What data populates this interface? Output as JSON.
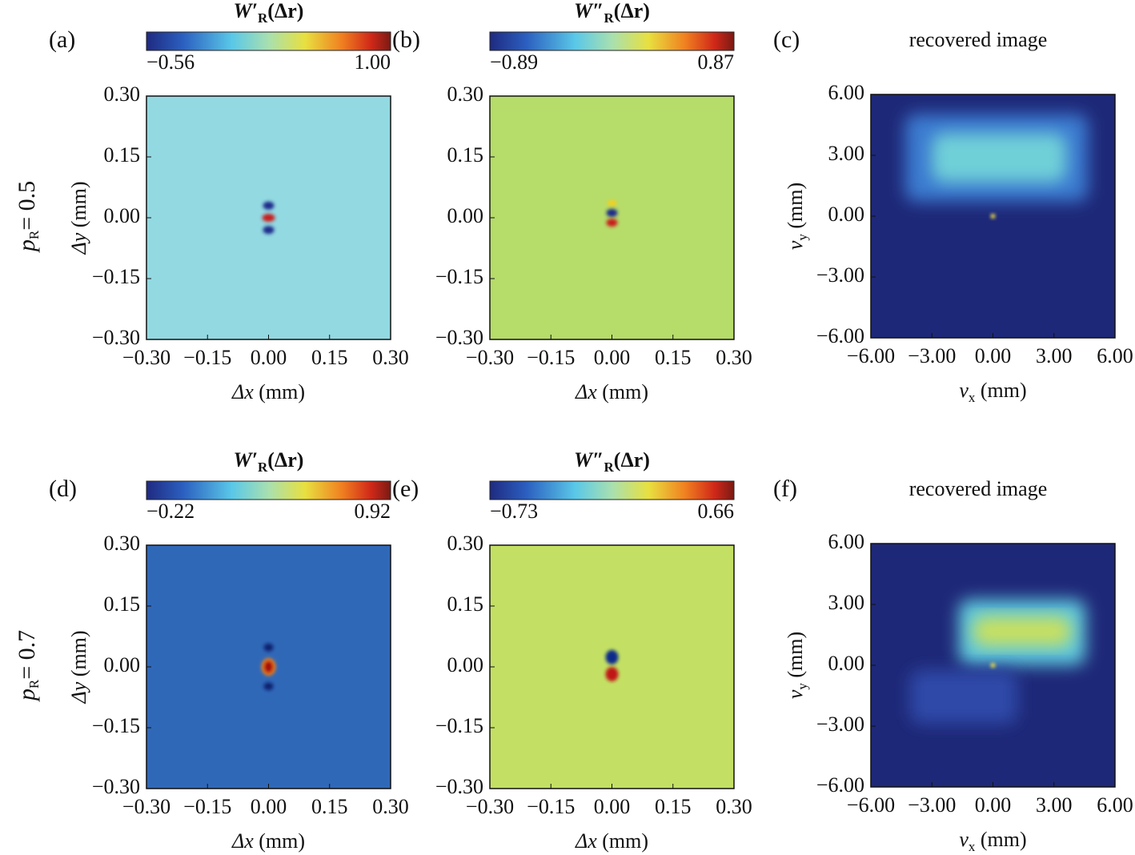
{
  "chart_data": [
    {
      "type": "heatmap",
      "panel_label": "(a)",
      "row_label": {
        "symbol": "p",
        "subscript": "R",
        "text": "= 0.5"
      },
      "colorbar_label": {
        "symbol": "W′",
        "subscript": "R",
        "argument": "(Δr)"
      },
      "colormap": "jet",
      "clim": [
        -0.56,
        1
      ],
      "cticks": [
        {
          "value": -0.56,
          "label": "−0.56"
        },
        {
          "value": 1,
          "label": "1.00"
        }
      ],
      "xlabel": {
        "symbol": "Δx",
        "unit": "(mm)"
      },
      "ylabel": {
        "symbol": "Δy",
        "unit": "(mm)"
      },
      "xlim": [
        -0.3,
        0.3
      ],
      "xticks": [
        {
          "value": -0.3,
          "label": "−0.30"
        },
        {
          "value": -0.15,
          "label": "−0.15"
        },
        {
          "value": 0,
          "label": "0.00"
        },
        {
          "value": 0.15,
          "label": "0.15"
        },
        {
          "value": 0.3,
          "label": "0.30"
        }
      ],
      "ylim": [
        -0.3,
        0.3
      ],
      "yticks": [
        {
          "value": -0.3,
          "label": "−0.30"
        },
        {
          "value": -0.15,
          "label": "−0.15"
        },
        {
          "value": 0,
          "label": "0.00"
        },
        {
          "value": 0.15,
          "label": "0.15"
        },
        {
          "value": 0.3,
          "label": "0.30"
        }
      ]
    },
    {
      "type": "heatmap",
      "panel_label": "(b)",
      "colorbar_label": {
        "symbol": "W″",
        "subscript": "R",
        "argument": "(Δr)"
      },
      "colormap": "jet",
      "clim": [
        -0.89,
        0.87
      ],
      "cticks": [
        {
          "value": -0.89,
          "label": "−0.89"
        },
        {
          "value": 0.87,
          "label": "0.87"
        }
      ],
      "xlabel": {
        "symbol": "Δx",
        "unit": "(mm)"
      },
      "xlim": [
        -0.3,
        0.3
      ],
      "xticks": [
        {
          "value": -0.3,
          "label": "−0.30"
        },
        {
          "value": -0.15,
          "label": "−0.15"
        },
        {
          "value": 0,
          "label": "0.00"
        },
        {
          "value": 0.15,
          "label": "0.15"
        },
        {
          "value": 0.3,
          "label": "0.30"
        }
      ],
      "ylim": [
        -0.3,
        0.3
      ],
      "yticks": [
        {
          "value": -0.3,
          "label": "−0.30"
        },
        {
          "value": -0.15,
          "label": "−0.15"
        },
        {
          "value": 0,
          "label": "0.00"
        },
        {
          "value": 0.15,
          "label": "0.15"
        },
        {
          "value": 0.3,
          "label": "0.30"
        }
      ]
    },
    {
      "type": "heatmap",
      "panel_label": "(c)",
      "title": "recovered image",
      "xlabel": {
        "symbol": "v",
        "subscript": "x",
        "unit": "(mm)"
      },
      "ylabel": {
        "symbol": "v",
        "subscript": "y",
        "unit": "(mm)"
      },
      "xlim": [
        -6,
        6
      ],
      "xticks": [
        {
          "value": -6,
          "label": "−6.00"
        },
        {
          "value": -3,
          "label": "−3.00"
        },
        {
          "value": 0,
          "label": "0.00"
        },
        {
          "value": 3,
          "label": "3.00"
        },
        {
          "value": 6,
          "label": "6.00"
        }
      ],
      "ylim": [
        -6,
        6
      ],
      "yticks": [
        {
          "value": -6,
          "label": "−6.00"
        },
        {
          "value": -3,
          "label": "−3.00"
        },
        {
          "value": 0,
          "label": "0.00"
        },
        {
          "value": 3,
          "label": "3.00"
        },
        {
          "value": 6,
          "label": "6.00"
        }
      ]
    },
    {
      "type": "heatmap",
      "panel_label": "(d)",
      "row_label": {
        "symbol": "p",
        "subscript": "R",
        "text": "= 0.7"
      },
      "colorbar_label": {
        "symbol": "W′",
        "subscript": "R",
        "argument": "(Δr)"
      },
      "colormap": "jet",
      "clim": [
        -0.22,
        0.92
      ],
      "cticks": [
        {
          "value": -0.22,
          "label": "−0.22"
        },
        {
          "value": 0.92,
          "label": "0.92"
        }
      ],
      "xlabel": {
        "symbol": "Δx",
        "unit": "(mm)"
      },
      "ylabel": {
        "symbol": "Δy",
        "unit": "(mm)"
      },
      "xlim": [
        -0.3,
        0.3
      ],
      "xticks": [
        {
          "value": -0.3,
          "label": "−0.30"
        },
        {
          "value": -0.15,
          "label": "−0.15"
        },
        {
          "value": 0,
          "label": "0.00"
        },
        {
          "value": 0.15,
          "label": "0.15"
        },
        {
          "value": 0.3,
          "label": "0.30"
        }
      ],
      "ylim": [
        -0.3,
        0.3
      ],
      "yticks": [
        {
          "value": -0.3,
          "label": "−0.30"
        },
        {
          "value": -0.15,
          "label": "−0.15"
        },
        {
          "value": 0,
          "label": "0.00"
        },
        {
          "value": 0.15,
          "label": "0.15"
        },
        {
          "value": 0.3,
          "label": "0.30"
        }
      ]
    },
    {
      "type": "heatmap",
      "panel_label": "(e)",
      "colorbar_label": {
        "symbol": "W″",
        "subscript": "R",
        "argument": "(Δr)"
      },
      "colormap": "jet",
      "clim": [
        -0.73,
        0.66
      ],
      "cticks": [
        {
          "value": -0.73,
          "label": "−0.73"
        },
        {
          "value": 0.66,
          "label": "0.66"
        }
      ],
      "xlabel": {
        "symbol": "Δx",
        "unit": "(mm)"
      },
      "xlim": [
        -0.3,
        0.3
      ],
      "xticks": [
        {
          "value": -0.3,
          "label": "−0.30"
        },
        {
          "value": -0.15,
          "label": "−0.15"
        },
        {
          "value": 0,
          "label": "0.00"
        },
        {
          "value": 0.15,
          "label": "0.15"
        },
        {
          "value": 0.3,
          "label": "0.30"
        }
      ],
      "ylim": [
        -0.3,
        0.3
      ],
      "yticks": [
        {
          "value": -0.3,
          "label": "−0.30"
        },
        {
          "value": -0.15,
          "label": "−0.15"
        },
        {
          "value": 0,
          "label": "0.00"
        },
        {
          "value": 0.15,
          "label": "0.15"
        },
        {
          "value": 0.3,
          "label": "0.30"
        }
      ]
    },
    {
      "type": "heatmap",
      "panel_label": "(f)",
      "title": "recovered image",
      "xlabel": {
        "symbol": "v",
        "subscript": "x",
        "unit": "(mm)"
      },
      "ylabel": {
        "symbol": "v",
        "subscript": "y",
        "unit": "(mm)"
      },
      "xlim": [
        -6,
        6
      ],
      "xticks": [
        {
          "value": -6,
          "label": "−6.00"
        },
        {
          "value": -3,
          "label": "−3.00"
        },
        {
          "value": 0,
          "label": "0.00"
        },
        {
          "value": 3,
          "label": "3.00"
        },
        {
          "value": 6,
          "label": "6.00"
        }
      ],
      "ylim": [
        -6,
        6
      ],
      "yticks": [
        {
          "value": -6,
          "label": "−6.00"
        },
        {
          "value": -3,
          "label": "−3.00"
        },
        {
          "value": 0,
          "label": "0.00"
        },
        {
          "value": 3,
          "label": "3.00"
        },
        {
          "value": 6,
          "label": "6.00"
        }
      ]
    }
  ]
}
